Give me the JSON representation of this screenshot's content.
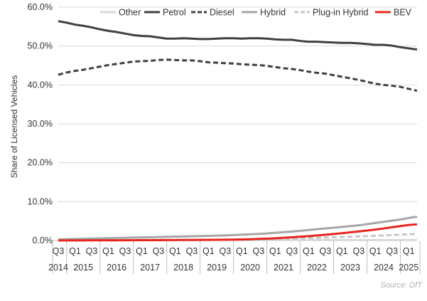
{
  "chart_data": {
    "type": "line",
    "ylabel": "Share of Licensed Vehicles",
    "ylim": [
      0,
      60
    ],
    "y_ticks": [
      "0.0%",
      "10.0%",
      "20.0%",
      "30.0%",
      "40.0%",
      "50.0%",
      "60.0%"
    ],
    "y_tick_values": [
      0,
      10,
      20,
      30,
      40,
      50,
      60
    ],
    "quarter_labels": [
      "Q3",
      "Q1",
      "Q3",
      "Q1",
      "Q3",
      "Q1",
      "Q3",
      "Q1",
      "Q3",
      "Q1",
      "Q3",
      "Q1",
      "Q3",
      "Q1",
      "Q3",
      "Q1",
      "Q3",
      "Q1",
      "Q3",
      "Q1",
      "Q3",
      "Q1"
    ],
    "year_labels": [
      "2014",
      "2015",
      "2016",
      "2017",
      "2018",
      "2019",
      "2020",
      "2021",
      "2022",
      "2023",
      "2024",
      "2025"
    ],
    "x": [
      "2014 Q3",
      "2014 Q4",
      "2015 Q1",
      "2015 Q2",
      "2015 Q3",
      "2015 Q4",
      "2016 Q1",
      "2016 Q2",
      "2016 Q3",
      "2016 Q4",
      "2017 Q1",
      "2017 Q2",
      "2017 Q3",
      "2017 Q4",
      "2018 Q1",
      "2018 Q2",
      "2018 Q3",
      "2018 Q4",
      "2019 Q1",
      "2019 Q2",
      "2019 Q3",
      "2019 Q4",
      "2020 Q1",
      "2020 Q2",
      "2020 Q3",
      "2020 Q4",
      "2021 Q1",
      "2021 Q2",
      "2021 Q3",
      "2021 Q4",
      "2022 Q1",
      "2022 Q2",
      "2022 Q3",
      "2022 Q4",
      "2023 Q1",
      "2023 Q2",
      "2023 Q3",
      "2023 Q4",
      "2024 Q1",
      "2024 Q2",
      "2024 Q3",
      "2024 Q4",
      "2025 Q1",
      "2025 Q2"
    ],
    "series": [
      {
        "name": "Other",
        "color": "#d9d9d9",
        "dash": "solid",
        "values": [
          0.2,
          0.2,
          0.2,
          0.2,
          0.2,
          0.2,
          0.2,
          0.2,
          0.2,
          0.2,
          0.2,
          0.2,
          0.2,
          0.2,
          0.2,
          0.2,
          0.2,
          0.2,
          0.2,
          0.2,
          0.2,
          0.2,
          0.2,
          0.2,
          0.2,
          0.2,
          0.2,
          0.2,
          0.2,
          0.2,
          0.2,
          0.2,
          0.2,
          0.2,
          0.2,
          0.2,
          0.2,
          0.2,
          0.2,
          0.2,
          0.2,
          0.2,
          0.2,
          0.2
        ]
      },
      {
        "name": "Petrol",
        "color": "#404040",
        "dash": "solid",
        "values": [
          56.4,
          56.0,
          55.5,
          55.2,
          54.8,
          54.3,
          53.9,
          53.6,
          53.2,
          52.8,
          52.6,
          52.5,
          52.2,
          51.9,
          51.9,
          52.0,
          51.9,
          51.8,
          51.8,
          51.9,
          52.0,
          52.0,
          51.9,
          52.0,
          52.0,
          51.9,
          51.7,
          51.6,
          51.6,
          51.3,
          51.1,
          51.1,
          51.0,
          50.9,
          50.8,
          50.8,
          50.7,
          50.5,
          50.3,
          50.3,
          50.1,
          49.7,
          49.4,
          49.1
        ]
      },
      {
        "name": "Diesel",
        "color": "#404040",
        "dash": "dashed",
        "values": [
          42.6,
          43.2,
          43.6,
          43.9,
          44.3,
          44.7,
          45.1,
          45.4,
          45.7,
          46.0,
          46.1,
          46.2,
          46.4,
          46.5,
          46.4,
          46.3,
          46.3,
          46.1,
          45.8,
          45.7,
          45.6,
          45.5,
          45.3,
          45.2,
          45.1,
          44.9,
          44.6,
          44.3,
          44.1,
          43.8,
          43.4,
          43.1,
          42.9,
          42.5,
          42.1,
          41.7,
          41.3,
          40.8,
          40.3,
          40.0,
          39.8,
          39.5,
          39.0,
          38.5
        ]
      },
      {
        "name": "Hybrid",
        "color": "#a6a6a6",
        "dash": "solid",
        "values": [
          0.3,
          0.35,
          0.4,
          0.45,
          0.5,
          0.55,
          0.6,
          0.65,
          0.7,
          0.75,
          0.8,
          0.85,
          0.9,
          0.95,
          1.0,
          1.05,
          1.1,
          1.15,
          1.2,
          1.25,
          1.3,
          1.4,
          1.5,
          1.6,
          1.7,
          1.8,
          2.0,
          2.15,
          2.3,
          2.5,
          2.7,
          2.9,
          3.1,
          3.3,
          3.5,
          3.7,
          3.9,
          4.2,
          4.5,
          4.8,
          5.1,
          5.4,
          5.8,
          6.1
        ]
      },
      {
        "name": "Plug-in Hybrid",
        "color": "#c8c8c8",
        "dash": "dashed",
        "values": [
          0.05,
          0.05,
          0.06,
          0.07,
          0.08,
          0.09,
          0.1,
          0.11,
          0.12,
          0.13,
          0.14,
          0.15,
          0.16,
          0.17,
          0.18,
          0.19,
          0.2,
          0.21,
          0.22,
          0.23,
          0.24,
          0.25,
          0.27,
          0.3,
          0.33,
          0.37,
          0.42,
          0.47,
          0.52,
          0.58,
          0.64,
          0.7,
          0.77,
          0.84,
          0.91,
          0.98,
          1.05,
          1.13,
          1.22,
          1.31,
          1.4,
          1.5,
          1.6,
          1.7
        ]
      },
      {
        "name": "BEV",
        "color": "#e8251e",
        "dash": "solid",
        "values": [
          0.02,
          0.02,
          0.03,
          0.03,
          0.04,
          0.04,
          0.05,
          0.05,
          0.06,
          0.07,
          0.08,
          0.09,
          0.1,
          0.11,
          0.12,
          0.13,
          0.14,
          0.15,
          0.17,
          0.19,
          0.21,
          0.24,
          0.28,
          0.33,
          0.4,
          0.48,
          0.58,
          0.7,
          0.83,
          0.98,
          1.13,
          1.3,
          1.48,
          1.68,
          1.88,
          2.1,
          2.33,
          2.56,
          2.82,
          3.1,
          3.4,
          3.7,
          4.0,
          4.15
        ]
      }
    ]
  },
  "source": "Source: DfT"
}
